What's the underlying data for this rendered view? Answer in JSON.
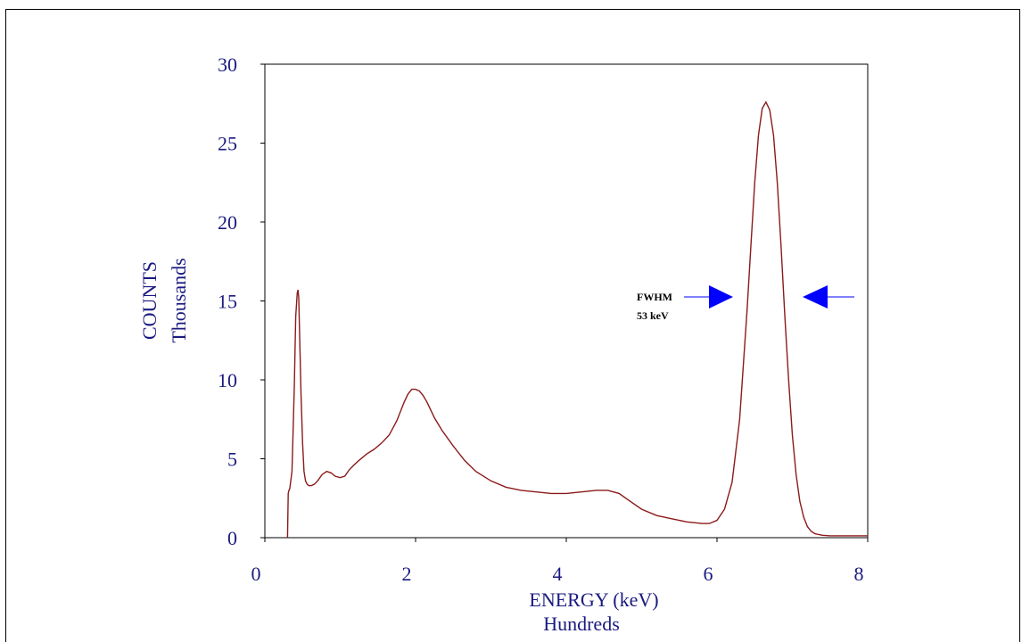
{
  "chart_data": {
    "type": "line",
    "xlabel": "ENERGY (keV)",
    "xlabel_sub": "Hundreds",
    "ylabel": "COUNTS",
    "ylabel_sub": "Thousands",
    "xlim": [
      0,
      8
    ],
    "ylim": [
      0,
      30
    ],
    "xticks": [
      "0",
      "2",
      "4",
      "6",
      "8"
    ],
    "yticks": [
      "0",
      "5",
      "10",
      "15",
      "20",
      "25",
      "30"
    ],
    "grid": false,
    "line_color": "#8b1a1a",
    "arrow_color": "#0000ff",
    "annotation": {
      "label": "FWHM",
      "value": "53 keV"
    },
    "series": [
      {
        "x": [
          0.3,
          0.31,
          0.32,
          0.33,
          0.36,
          0.39,
          0.41,
          0.43,
          0.44,
          0.45,
          0.46,
          0.48,
          0.5,
          0.52,
          0.54,
          0.56,
          0.58,
          0.62,
          0.66,
          0.7,
          0.76,
          0.82,
          0.88,
          0.93,
          1.0,
          1.06,
          1.12,
          1.18,
          1.25,
          1.35,
          1.45,
          1.55,
          1.65,
          1.75,
          1.85,
          1.9,
          1.95,
          2.0,
          2.05,
          2.1,
          2.15,
          2.2,
          2.25,
          2.35,
          2.5,
          2.65,
          2.8,
          3.0,
          3.2,
          3.4,
          3.6,
          3.8,
          4.0,
          4.2,
          4.4,
          4.55,
          4.7,
          4.85,
          5.0,
          5.2,
          5.4,
          5.6,
          5.8,
          5.9,
          6.0,
          6.1,
          6.2,
          6.3,
          6.4,
          6.45,
          6.5,
          6.55,
          6.6,
          6.65,
          6.7,
          6.75,
          6.8,
          6.85,
          6.9,
          6.95,
          7.0,
          7.05,
          7.1,
          7.15,
          7.2,
          7.25,
          7.3,
          7.35,
          7.4,
          7.5,
          7.6,
          7.8,
          8.0
        ],
        "y": [
          0.0,
          2.8,
          3.0,
          3.1,
          4.2,
          9.5,
          14.0,
          15.5,
          15.7,
          15.2,
          13.0,
          9.0,
          6.0,
          4.2,
          3.6,
          3.4,
          3.3,
          3.3,
          3.4,
          3.6,
          4.0,
          4.2,
          4.1,
          3.9,
          3.8,
          3.9,
          4.3,
          4.6,
          4.9,
          5.3,
          5.6,
          6.0,
          6.5,
          7.4,
          8.6,
          9.1,
          9.4,
          9.4,
          9.3,
          9.0,
          8.6,
          8.1,
          7.6,
          6.8,
          5.8,
          4.9,
          4.2,
          3.6,
          3.2,
          3.0,
          2.9,
          2.8,
          2.8,
          2.9,
          3.0,
          3.0,
          2.8,
          2.3,
          1.8,
          1.4,
          1.2,
          1.0,
          0.9,
          0.9,
          1.1,
          1.8,
          3.5,
          7.5,
          14.5,
          18.5,
          22.5,
          25.5,
          27.2,
          27.6,
          27.1,
          25.5,
          22.5,
          18.5,
          14.0,
          10.0,
          6.5,
          4.0,
          2.3,
          1.3,
          0.7,
          0.4,
          0.25,
          0.2,
          0.15,
          0.12,
          0.12,
          0.12,
          0.12
        ]
      }
    ]
  }
}
